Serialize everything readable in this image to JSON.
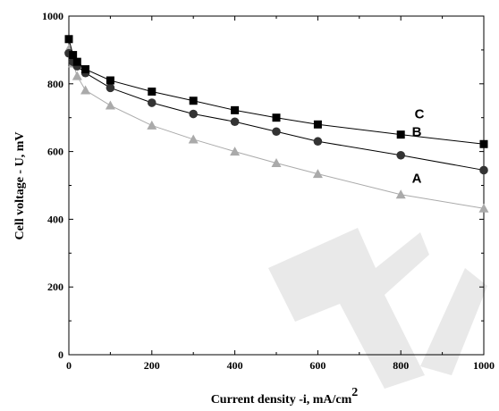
{
  "chart_data": {
    "type": "line",
    "xlabel": "Current density -i, mA/cm",
    "xlabel_superscript": "2",
    "ylabel": "Cell voltage - U, mV",
    "xlim": [
      0,
      1000
    ],
    "ylim": [
      0,
      1000
    ],
    "x_ticks": [
      0,
      200,
      400,
      600,
      800,
      1000
    ],
    "y_ticks": [
      0,
      200,
      400,
      600,
      800,
      1000
    ],
    "grid": false,
    "legend": "none",
    "series": [
      {
        "name": "C",
        "marker": "square",
        "color": "#000000",
        "line_color": "#000000",
        "x": [
          0,
          10,
          20,
          40,
          100,
          200,
          300,
          400,
          500,
          600,
          800,
          1000
        ],
        "y": [
          932,
          885,
          865,
          843,
          810,
          777,
          750,
          722,
          700,
          680,
          650,
          622
        ]
      },
      {
        "name": "B",
        "marker": "circle",
        "color": "#333333",
        "line_color": "#000000",
        "x": [
          0,
          10,
          20,
          40,
          100,
          200,
          300,
          400,
          500,
          600,
          800,
          1000
        ],
        "y": [
          890,
          865,
          852,
          832,
          788,
          744,
          711,
          688,
          659,
          630,
          589,
          545
        ]
      },
      {
        "name": "A",
        "marker": "triangle",
        "color": "#aaaaaa",
        "line_color": "#aaaaaa",
        "x": [
          0,
          10,
          20,
          40,
          100,
          200,
          300,
          400,
          500,
          600,
          800,
          1000
        ],
        "y": [
          903,
          860,
          823,
          781,
          736,
          677,
          636,
          600,
          566,
          534,
          473,
          432
        ]
      }
    ]
  }
}
